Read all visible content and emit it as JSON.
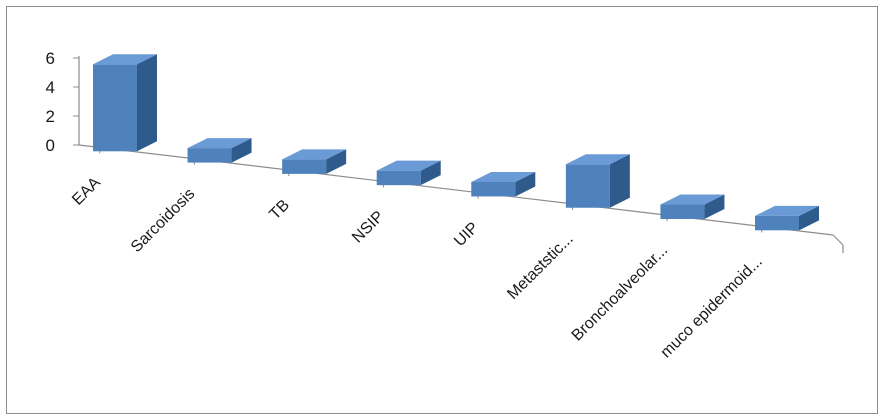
{
  "chart_data": {
    "type": "bar",
    "categories": [
      "EAA",
      "Sarcoidosis",
      "TB",
      "NSIP",
      "UIP",
      "Metaststic...",
      "Bronchoalveolar...",
      "muco epidermoid..."
    ],
    "series": [
      {
        "values": [
          6,
          1,
          1,
          1,
          1,
          3,
          1,
          1
        ]
      }
    ],
    "yticks": [
      0,
      2,
      4,
      6
    ],
    "ylim": [
      0,
      6
    ],
    "grid": false,
    "legend": "none",
    "three_d": true,
    "colors": {
      "bar_front": "#4f81bd",
      "bar_side": "#2e5a8c",
      "bar_top": "#6b9bd6",
      "axis": "#8c8c8c"
    }
  }
}
